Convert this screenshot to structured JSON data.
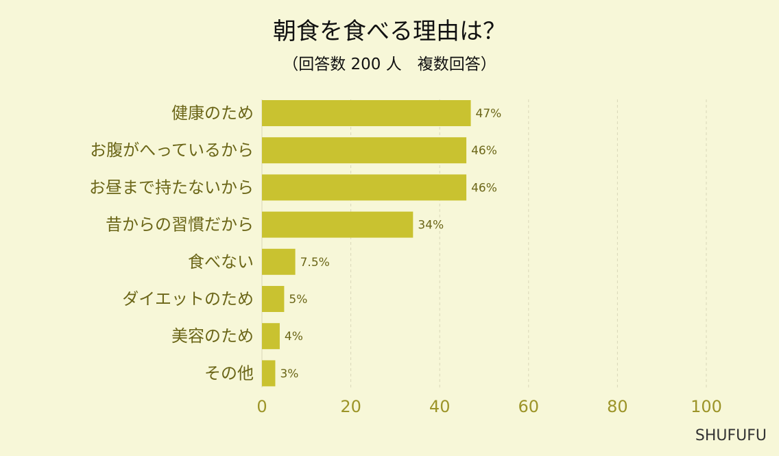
{
  "title": "朝食を食べる理由は？",
  "subtitle": "（回答数 200 人　複数回答）",
  "brand": "SHUFUFU",
  "colors": {
    "background": "#f7f7d8",
    "bar": "#c9c230",
    "label_text": "#6b6618",
    "tick_text": "#9c9428",
    "grid": "#d9d7b8"
  },
  "chart_data": {
    "type": "bar",
    "orientation": "horizontal",
    "categories": [
      "健康のため",
      "お腹がへっているから",
      "お昼まで持たないから",
      "昔からの習慣だから",
      "食べない",
      "ダイエットのため",
      "美容のため",
      "その他"
    ],
    "values": [
      47,
      46,
      46,
      34,
      7.5,
      5,
      4,
      3
    ],
    "value_labels": [
      "47%",
      "46%",
      "46%",
      "34%",
      "7.5%",
      "5%",
      "4%",
      "3%"
    ],
    "xlim": [
      0,
      100
    ],
    "xticks": [
      0,
      20,
      40,
      60,
      80,
      100
    ],
    "xtick_labels": [
      "0",
      "20",
      "40",
      "60",
      "80",
      "100"
    ],
    "grid": "vertical dashed"
  }
}
